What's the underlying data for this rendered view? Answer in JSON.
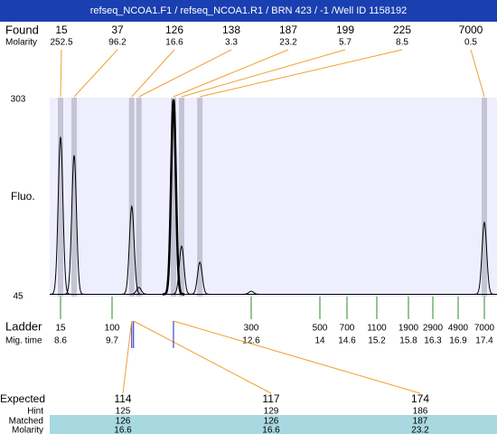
{
  "title": "refseq_NCOA1.F1 / refseq_NCOA1.R1 / BRN 423 / -1 /Well ID 1158192",
  "found": {
    "label": "Found",
    "molarity_label": "Molarity",
    "sizes": [
      15,
      37,
      126,
      138,
      187,
      199,
      225,
      7000
    ],
    "molarity": [
      252.5,
      96.2,
      16.6,
      3.3,
      23.2,
      5.7,
      8.5,
      0.5
    ],
    "times": [
      8.6,
      8.89,
      10.11,
      10.26,
      10.98,
      11.15,
      11.53,
      17.4
    ]
  },
  "trace": {
    "label": "Fluo.",
    "ylim": [
      45,
      303
    ],
    "yticks": [
      45,
      303
    ],
    "baseline": 48,
    "peaks": [
      {
        "time": 8.6,
        "height": 254
      },
      {
        "time": 8.89,
        "height": 230
      },
      {
        "time": 10.11,
        "height": 163
      },
      {
        "time": 10.26,
        "height": 57
      },
      {
        "time": 10.98,
        "height": 303
      },
      {
        "time": 11.15,
        "height": 111
      },
      {
        "time": 11.53,
        "height": 90
      },
      {
        "time": 12.6,
        "height": 52
      },
      {
        "time": 17.4,
        "height": 142
      }
    ]
  },
  "ladder": {
    "label": "Ladder",
    "time_label": "Mig. time",
    "sizes": [
      15,
      100,
      300,
      500,
      700,
      1100,
      1900,
      2900,
      4900,
      7000
    ],
    "times": [
      8.6,
      9.7,
      12.6,
      14,
      14.6,
      15.2,
      15.8,
      16.3,
      16.9,
      17.4
    ]
  },
  "expected": {
    "row_labels": [
      "Expected",
      "Hint",
      "Matched",
      "Molarity"
    ],
    "expected": [
      114,
      117,
      174
    ],
    "hint": [
      125,
      129,
      186
    ],
    "matched": [
      126,
      126,
      187
    ],
    "molarity": [
      16.6,
      16.6,
      23.2
    ]
  }
}
